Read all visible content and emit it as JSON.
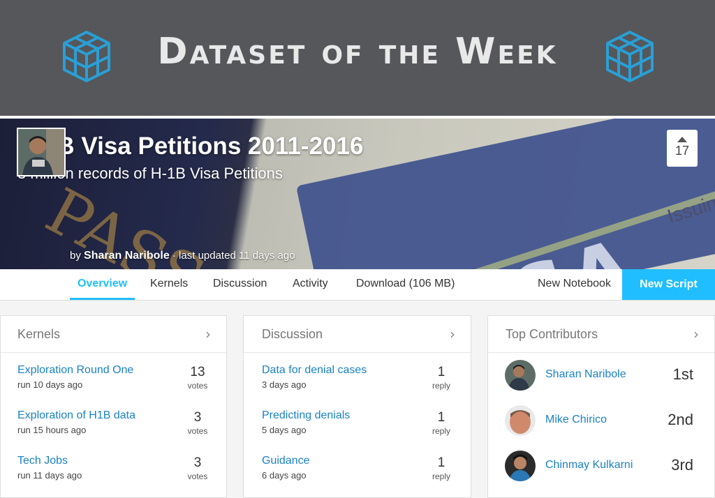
{
  "banner": {
    "title": "Dataset of the Week"
  },
  "hero": {
    "title": "H-1B Visa Petitions 2011-2016",
    "subtitle": "3 million records of H-1B Visa Petitions",
    "image_text": {
      "passport": "PASS",
      "visa": "VISA",
      "issuing": "Issuin"
    },
    "votes": "17",
    "byline_prefix": "by",
    "author": "Sharan Naribole",
    "byline_suffix": "· last updated 11 days ago"
  },
  "nav": {
    "tabs": [
      "Overview",
      "Kernels",
      "Discussion",
      "Activity",
      "Download (106 MB)"
    ],
    "active": "Overview",
    "new_notebook": "New Notebook",
    "new_script": "New Script"
  },
  "kernels": {
    "title": "Kernels",
    "items": [
      {
        "name": "Exploration Round One",
        "meta": "run 10 days ago",
        "count": "13",
        "unit": "votes"
      },
      {
        "name": "Exploration of H1B data",
        "meta": "run 15 hours ago",
        "count": "3",
        "unit": "votes"
      },
      {
        "name": "Tech Jobs",
        "meta": "run 11 days ago",
        "count": "3",
        "unit": "votes"
      }
    ]
  },
  "discussion": {
    "title": "Discussion",
    "items": [
      {
        "name": "Data for denial cases",
        "meta": "3 days ago",
        "count": "1",
        "unit": "reply"
      },
      {
        "name": "Predicting denials",
        "meta": "5 days ago",
        "count": "1",
        "unit": "reply"
      },
      {
        "name": "Guidance",
        "meta": "6 days ago",
        "count": "1",
        "unit": "reply"
      }
    ]
  },
  "contributors": {
    "title": "Top Contributors",
    "items": [
      {
        "name": "Sharan Naribole",
        "rank": "1st"
      },
      {
        "name": "Mike Chirico",
        "rank": "2nd"
      },
      {
        "name": "Chinmay Kulkarni",
        "rank": "3rd"
      }
    ]
  },
  "colors": {
    "accent": "#20beff",
    "link": "#1a82c4",
    "banner": "#55575b",
    "cube": "#2a9fd6"
  },
  "icons": {
    "banner_left": "cube-icon",
    "banner_right": "cube-icon",
    "upvote": "caret-up-icon",
    "panel_more": "chevron-right-icon"
  }
}
